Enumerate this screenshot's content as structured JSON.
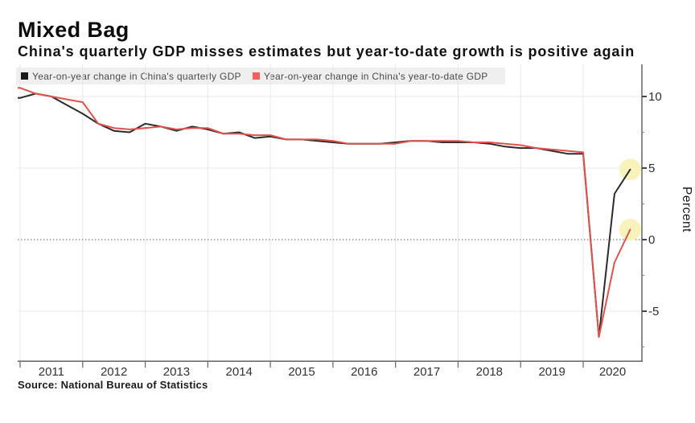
{
  "header": {
    "title": "Mixed Bag",
    "subtitle": "China's quarterly GDP misses estimates but year-to-date growth is positive again"
  },
  "legend": {
    "items": [
      {
        "label": "Year-on-year change in China's quarterly GDP",
        "color": "#1a1a1a"
      },
      {
        "label": "Year-on-year change in China's year-to-date GDP",
        "color": "#f2605c"
      }
    ]
  },
  "source_note": "Source: National Bureau of Statistics",
  "chart_data": {
    "type": "line",
    "title": "Mixed Bag",
    "subtitle": "China's quarterly GDP misses estimates but year-to-date growth is positive again",
    "xlabel": "",
    "ylabel": "Percent",
    "x_tick_labels": [
      "2011",
      "2012",
      "2013",
      "2014",
      "2015",
      "2016",
      "2017",
      "2018",
      "2019",
      "2020"
    ],
    "y_ticks": [
      10,
      5,
      0,
      -5
    ],
    "y_minor_ticks": [
      7.5,
      2.5,
      -2.5,
      -7.5
    ],
    "ylim": [
      -8.5,
      12.3
    ],
    "zero_line": "dotted",
    "grid": true,
    "legend_position": "top",
    "x": [
      "2010 Q3",
      "2010 Q4",
      "2011 Q1",
      "2011 Q2",
      "2011 Q3",
      "2011 Q4",
      "2012 Q1",
      "2012 Q2",
      "2012 Q3",
      "2012 Q4",
      "2013 Q1",
      "2013 Q2",
      "2013 Q3",
      "2013 Q4",
      "2014 Q1",
      "2014 Q2",
      "2014 Q3",
      "2014 Q4",
      "2015 Q1",
      "2015 Q2",
      "2015 Q3",
      "2015 Q4",
      "2016 Q1",
      "2016 Q2",
      "2016 Q3",
      "2016 Q4",
      "2017 Q1",
      "2017 Q2",
      "2017 Q3",
      "2017 Q4",
      "2018 Q1",
      "2018 Q2",
      "2018 Q3",
      "2018 Q4",
      "2019 Q1",
      "2019 Q2",
      "2019 Q3",
      "2019 Q4",
      "2020 Q1",
      "2020 Q2",
      "2020 Q3"
    ],
    "series": [
      {
        "name": "Year-on-year change in China's quarterly GDP",
        "color": "#2b2b2b",
        "values": [
          9.9,
          9.9,
          10.2,
          10.0,
          9.4,
          8.8,
          8.1,
          7.6,
          7.5,
          8.1,
          7.9,
          7.6,
          7.9,
          7.7,
          7.4,
          7.5,
          7.1,
          7.2,
          7.0,
          7.0,
          6.9,
          6.8,
          6.7,
          6.7,
          6.7,
          6.8,
          6.9,
          6.9,
          6.8,
          6.8,
          6.8,
          6.7,
          6.5,
          6.4,
          6.4,
          6.2,
          6.0,
          6.0,
          -6.8,
          3.2,
          4.9
        ]
      },
      {
        "name": "Year-on-year change in China's year-to-date GDP",
        "color": "#e0524e",
        "values": [
          10.6,
          10.6,
          10.2,
          10.0,
          9.8,
          9.6,
          8.1,
          7.8,
          7.7,
          7.8,
          7.9,
          7.7,
          7.8,
          7.8,
          7.4,
          7.4,
          7.3,
          7.3,
          7.0,
          7.0,
          7.0,
          6.9,
          6.7,
          6.7,
          6.7,
          6.7,
          6.9,
          6.9,
          6.9,
          6.9,
          6.8,
          6.8,
          6.7,
          6.6,
          6.4,
          6.3,
          6.2,
          6.1,
          -6.8,
          -1.6,
          0.7
        ]
      }
    ],
    "annotations": {
      "highlight_circles": [
        {
          "x": "2020 Q3",
          "value": 4.9,
          "series": "quarterly GDP",
          "color": "#f8f3ba"
        },
        {
          "x": "2020 Q3",
          "value": 0.7,
          "series": "year-to-date GDP",
          "color": "#f8f3ba"
        }
      ]
    },
    "source": "Source: National Bureau of Statistics"
  }
}
